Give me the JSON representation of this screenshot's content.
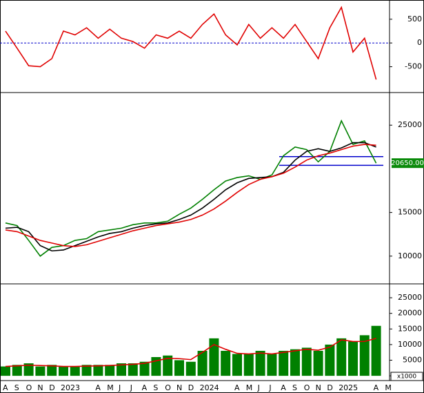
{
  "chart_data": [
    {
      "type": "line",
      "series": [
        {
          "color": "#e00000",
          "values": [
            250,
            -110,
            -480,
            -500,
            -330,
            250,
            170,
            320,
            100,
            290,
            100,
            30,
            -110,
            170,
            100,
            250,
            100,
            390,
            610,
            170,
            -40,
            390,
            100,
            320,
            100,
            390,
            30,
            -330,
            320,
            750,
            -190,
            100,
            -770,
            null
          ]
        }
      ],
      "zero_line_color": "#0000cc",
      "ylim": [
        -1030,
        905
      ],
      "yticks": [
        -500,
        0,
        500
      ]
    },
    {
      "type": "line",
      "series": [
        {
          "color": "#008000",
          "values": [
            13800,
            13500,
            11800,
            10000,
            11000,
            11200,
            11800,
            12000,
            12800,
            13000,
            13200,
            13600,
            13800,
            13800,
            14000,
            14800,
            15500,
            16500,
            17600,
            18600,
            19000,
            19200,
            18800,
            19300,
            21500,
            22500,
            22200,
            20800,
            22000,
            25500,
            22800,
            23200,
            20650,
            null
          ]
        },
        {
          "color": "#000000",
          "values": [
            13200,
            13300,
            12800,
            11200,
            10600,
            10700,
            11200,
            11700,
            12200,
            12600,
            12800,
            13200,
            13500,
            13700,
            13800,
            14200,
            14700,
            15500,
            16500,
            17600,
            18400,
            18900,
            19000,
            19100,
            19600,
            21000,
            22000,
            22300,
            22000,
            22400,
            23000,
            23000,
            22500,
            null
          ]
        },
        {
          "color": "#e00000",
          "values": [
            13000,
            12800,
            12300,
            11800,
            11500,
            11200,
            11100,
            11300,
            11700,
            12100,
            12500,
            12900,
            13200,
            13500,
            13700,
            13900,
            14200,
            14700,
            15400,
            16300,
            17300,
            18200,
            18800,
            19100,
            19500,
            20200,
            21000,
            21500,
            21800,
            22200,
            22600,
            22800,
            22700,
            null
          ]
        }
      ],
      "bands": [
        20400,
        21400
      ],
      "band_color": "#0000cc",
      "price_tag": {
        "value": 20650,
        "label": "20650.00"
      },
      "ylim": [
        6900,
        28500
      ],
      "yticks": [
        10000,
        15000,
        25000
      ]
    },
    {
      "type": "bar",
      "categories": [
        "A",
        "S",
        "O",
        "N",
        "D",
        "2023",
        null,
        null,
        "A",
        "M",
        "J",
        "J",
        "A",
        "S",
        "O",
        "N",
        "D",
        "2024",
        null,
        null,
        "A",
        "M",
        "J",
        "J",
        "A",
        "S",
        "O",
        "N",
        "D",
        "2025",
        null,
        null,
        "A",
        "M"
      ],
      "series": [
        {
          "color": "#008000",
          "values": [
            3000,
            3500,
            4000,
            3000,
            3500,
            3000,
            3000,
            3500,
            3500,
            3500,
            4000,
            4000,
            4500,
            6000,
            6500,
            5000,
            4500,
            8000,
            12000,
            8000,
            7000,
            7000,
            8000,
            7000,
            8000,
            8500,
            9000,
            8000,
            10000,
            12000,
            11000,
            13000,
            16000,
            null
          ]
        },
        {
          "color": "#e00000",
          "values": [
            3000,
            3200,
            3400,
            3300,
            3200,
            3000,
            3000,
            3100,
            3200,
            3300,
            3500,
            3700,
            4000,
            4800,
            5600,
            5500,
            5200,
            7500,
            10000,
            8500,
            7200,
            7000,
            7300,
            7000,
            7500,
            8000,
            8500,
            8200,
            9200,
            11500,
            11000,
            11000,
            12000,
            null
          ]
        }
      ],
      "unit_label": "x1000",
      "ylim": [
        -1300,
        29000
      ],
      "yticks": [
        0,
        5000,
        10000,
        15000,
        20000,
        25000
      ]
    }
  ]
}
